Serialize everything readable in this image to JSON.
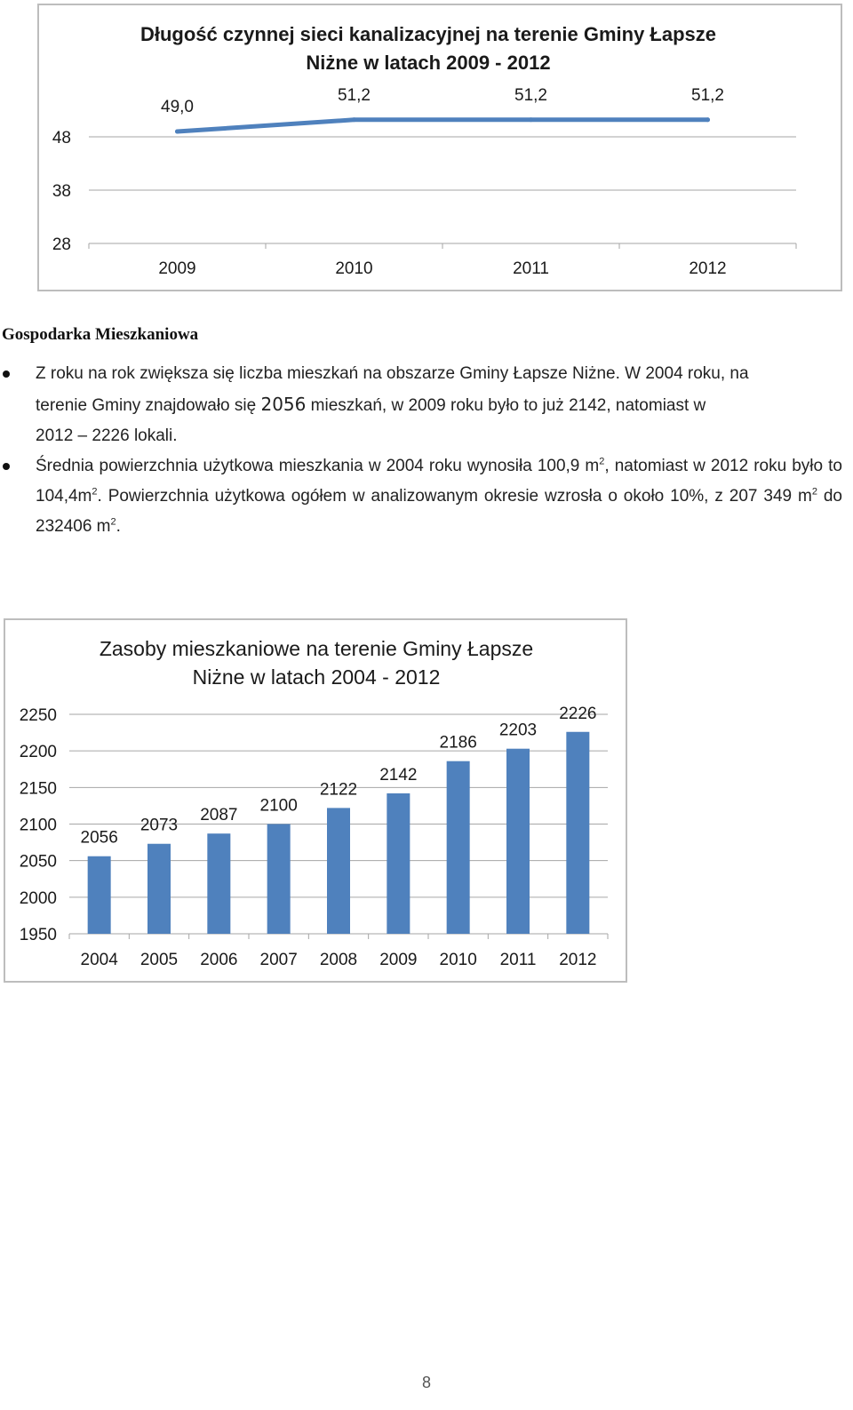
{
  "chart_data": [
    {
      "type": "line",
      "title": "Długość czynnej sieci kanalizacyjnej na terenie Gminy Łapsze Niżne w latach 2009 - 2012",
      "title_lines": [
        "Długość czynnej sieci kanalizacyjnej na terenie Gminy Łapsze",
        "Niżne w latach 2009 - 2012"
      ],
      "categories": [
        "2009",
        "2010",
        "2011",
        "2012"
      ],
      "values": [
        49.0,
        51.2,
        51.2,
        51.2
      ],
      "data_labels": [
        "49,0",
        "51,2",
        "51,2",
        "51,2"
      ],
      "y_ticks": [
        "48",
        "38",
        "28"
      ],
      "ylim": [
        28,
        48
      ],
      "grid": true,
      "legend": "none",
      "color": "#4f81bd"
    },
    {
      "type": "bar",
      "title": "Zasoby mieszkaniowe na terenie Gminy Łapsze Niżne w latach 2004 - 2012",
      "title_lines": [
        "Zasoby mieszkaniowe na terenie Gminy Łapsze",
        "Niżne w latach 2004 - 2012"
      ],
      "categories": [
        "2004",
        "2005",
        "2006",
        "2007",
        "2008",
        "2009",
        "2010",
        "2011",
        "2012"
      ],
      "values": [
        2056,
        2073,
        2087,
        2100,
        2122,
        2142,
        2186,
        2203,
        2226
      ],
      "y_ticks": [
        "2250",
        "2200",
        "2150",
        "2100",
        "2050",
        "2000",
        "1950"
      ],
      "ylim": [
        1950,
        2250
      ],
      "grid": true,
      "legend": "none",
      "color": "#4f81bd"
    }
  ],
  "section": {
    "heading": "Gospodarka Mieszkaniowa",
    "bullet1": {
      "line1": "Z roku na rok zwiększa się liczba mieszkań na obszarze Gminy Łapsze Niżne. W 2004 roku, na",
      "line2a": "terenie Gminy  znajdowało się ",
      "line2b": "2056",
      "line2c": " mieszkań, w 2009 roku było to już 2142, natomiast w",
      "line3": "2012 – 2226 lokali."
    },
    "bullet2": {
      "part1": "Średnia powierzchnia użytkowa mieszkania w 2004 roku wynosiła 100,9 m",
      "sup1": "2",
      "part2": ", natomiast w 2012 roku było to 104,4m",
      "sup2": "2",
      "part3": ". Powierzchnia użytkowa ogółem w analizowanym okresie wzrosła o około 10%, z 207 349 m",
      "sup3": "2",
      "part4": " do 232406 m",
      "sup4": "2",
      "part5": "."
    }
  },
  "page_number": "8"
}
